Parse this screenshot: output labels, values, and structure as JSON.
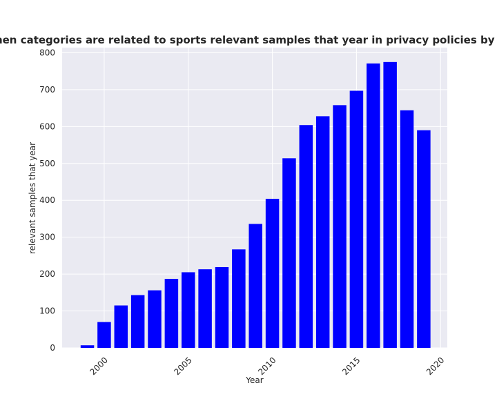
{
  "chart_data": {
    "type": "bar",
    "title": "when categories are related to sports relevant samples that year in privacy policies by Year",
    "xlabel": "Year",
    "ylabel": "relevant samples that year",
    "x": [
      1999,
      2000,
      2001,
      2002,
      2003,
      2004,
      2005,
      2006,
      2007,
      2008,
      2009,
      2010,
      2011,
      2012,
      2013,
      2014,
      2015,
      2016,
      2017,
      2018,
      2019
    ],
    "values": [
      7,
      70,
      115,
      143,
      156,
      187,
      205,
      213,
      219,
      267,
      336,
      404,
      514,
      604,
      628,
      658,
      697,
      771,
      775,
      644,
      590
    ],
    "xlim": [
      1997.5,
      2020.4
    ],
    "ylim": [
      0,
      814
    ],
    "xticks": [
      2000,
      2005,
      2010,
      2015,
      2020
    ],
    "yticks": [
      0,
      100,
      200,
      300,
      400,
      500,
      600,
      700,
      800
    ],
    "grid": true,
    "bar_color": "#0000ff",
    "background_color": "#eaeaf2",
    "grid_color": "#ffffff"
  }
}
